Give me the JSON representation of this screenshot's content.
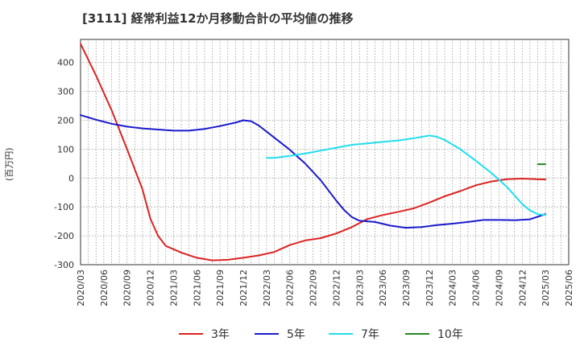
{
  "chart_data": {
    "type": "line",
    "title": "[3111]  経常利益12か月移動合計の平均値の推移",
    "ylabel": "(百万円)",
    "xlabel": "",
    "ylim": [
      -300,
      480
    ],
    "yticks": [
      -300,
      -200,
      -100,
      0,
      100,
      200,
      300,
      400
    ],
    "xticks": [
      "2020/03",
      "2020/06",
      "2020/09",
      "2020/12",
      "2021/03",
      "2021/06",
      "2021/09",
      "2021/12",
      "2022/03",
      "2022/06",
      "2022/09",
      "2022/12",
      "2023/03",
      "2023/06",
      "2023/09",
      "2023/12",
      "2024/03",
      "2024/06",
      "2024/09",
      "2024/12",
      "2025/03",
      "2025/06"
    ],
    "grid": true,
    "legend_position": "bottom",
    "series": [
      {
        "name": "3年",
        "color": "#dd2222",
        "points": [
          [
            "2020/03",
            465
          ],
          [
            "2020/05",
            355
          ],
          [
            "2020/07",
            235
          ],
          [
            "2020/09",
            100
          ],
          [
            "2020/11",
            -40
          ],
          [
            "2020/12",
            -140
          ],
          [
            "2021/01",
            -200
          ],
          [
            "2021/02",
            -235
          ],
          [
            "2021/04",
            -258
          ],
          [
            "2021/06",
            -276
          ],
          [
            "2021/08",
            -285
          ],
          [
            "2021/10",
            -283
          ],
          [
            "2021/12",
            -276
          ],
          [
            "2022/02",
            -268
          ],
          [
            "2022/04",
            -256
          ],
          [
            "2022/06",
            -232
          ],
          [
            "2022/08",
            -216
          ],
          [
            "2022/10",
            -208
          ],
          [
            "2022/12",
            -192
          ],
          [
            "2023/02",
            -170
          ],
          [
            "2023/04",
            -142
          ],
          [
            "2023/06",
            -128
          ],
          [
            "2023/08",
            -117
          ],
          [
            "2023/10",
            -105
          ],
          [
            "2023/12",
            -85
          ],
          [
            "2024/02",
            -63
          ],
          [
            "2024/04",
            -45
          ],
          [
            "2024/06",
            -25
          ],
          [
            "2024/08",
            -12
          ],
          [
            "2024/10",
            -4
          ],
          [
            "2024/12",
            -2
          ],
          [
            "2025/03",
            -5
          ]
        ]
      },
      {
        "name": "5年",
        "color": "#1a1acc",
        "points": [
          [
            "2020/03",
            218
          ],
          [
            "2020/05",
            202
          ],
          [
            "2020/07",
            188
          ],
          [
            "2020/09",
            178
          ],
          [
            "2020/11",
            172
          ],
          [
            "2021/01",
            168
          ],
          [
            "2021/03",
            164
          ],
          [
            "2021/05",
            164
          ],
          [
            "2021/07",
            170
          ],
          [
            "2021/09",
            180
          ],
          [
            "2021/11",
            192
          ],
          [
            "2021/12",
            200
          ],
          [
            "2022/01",
            197
          ],
          [
            "2022/02",
            182
          ],
          [
            "2022/04",
            140
          ],
          [
            "2022/06",
            98
          ],
          [
            "2022/08",
            50
          ],
          [
            "2022/10",
            -8
          ],
          [
            "2022/12",
            -78
          ],
          [
            "2023/01",
            -110
          ],
          [
            "2023/02",
            -135
          ],
          [
            "2023/03",
            -148
          ],
          [
            "2023/05",
            -152
          ],
          [
            "2023/07",
            -165
          ],
          [
            "2023/09",
            -172
          ],
          [
            "2023/11",
            -170
          ],
          [
            "2024/01",
            -163
          ],
          [
            "2024/03",
            -158
          ],
          [
            "2024/05",
            -152
          ],
          [
            "2024/07",
            -145
          ],
          [
            "2024/09",
            -145
          ],
          [
            "2024/11",
            -146
          ],
          [
            "2025/01",
            -143
          ],
          [
            "2025/03",
            -125
          ]
        ]
      },
      {
        "name": "7年",
        "color": "#22ddee",
        "points": [
          [
            "2022/03",
            70
          ],
          [
            "2022/04",
            70
          ],
          [
            "2022/06",
            77
          ],
          [
            "2022/08",
            85
          ],
          [
            "2022/10",
            95
          ],
          [
            "2022/12",
            105
          ],
          [
            "2023/02",
            115
          ],
          [
            "2023/04",
            120
          ],
          [
            "2023/06",
            125
          ],
          [
            "2023/08",
            130
          ],
          [
            "2023/10",
            138
          ],
          [
            "2023/12",
            147
          ],
          [
            "2024/01",
            143
          ],
          [
            "2024/02",
            132
          ],
          [
            "2024/04",
            100
          ],
          [
            "2024/06",
            60
          ],
          [
            "2024/08",
            18
          ],
          [
            "2024/10",
            -30
          ],
          [
            "2024/12",
            -90
          ],
          [
            "2025/01",
            -112
          ],
          [
            "2025/02",
            -125
          ],
          [
            "2025/03",
            -128
          ]
        ]
      },
      {
        "name": "10年",
        "color": "#228822",
        "points": [
          [
            "2025/02",
            48
          ],
          [
            "2025/03",
            48
          ]
        ]
      }
    ]
  }
}
